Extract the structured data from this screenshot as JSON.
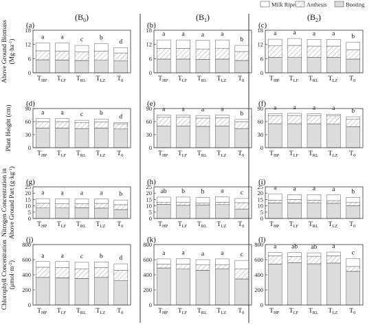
{
  "legend": [
    {
      "label": "Milk Ripe",
      "pattern": "white"
    },
    {
      "label": "Anthesis",
      "pattern": "hatch"
    },
    {
      "label": "Booting",
      "pattern": "gray"
    }
  ],
  "colors": {
    "booting_fill": "#dcdcdc",
    "milk_fill": "#ffffff",
    "hatch_line": "#8a8a8a",
    "edge": "#555555"
  },
  "column_headers": [
    {
      "base": "(B",
      "sub": "0",
      "close": ")"
    },
    {
      "base": "(B",
      "sub": "1",
      "close": ")"
    },
    {
      "base": "(B",
      "sub": "2",
      "close": ")"
    }
  ],
  "categories": [
    {
      "base": "T",
      "sub": "HP"
    },
    {
      "base": "T",
      "sub": "LF"
    },
    {
      "base": "T",
      "sub": "RL"
    },
    {
      "base": "T",
      "sub": "LZ"
    },
    {
      "base": "T",
      "sub": "0"
    }
  ],
  "rows": [
    {
      "ylabel_lines": [
        [
          {
            "t": "Above Ground Biomass"
          }
        ],
        [
          {
            "t": "(Mg·ha"
          },
          {
            "t": "-1",
            "sup": true
          },
          {
            "t": ")"
          }
        ]
      ]
    },
    {
      "ylabel_lines": [
        [
          {
            "t": "Plant Height (cm)"
          }
        ]
      ]
    },
    {
      "ylabel_lines": [
        [
          {
            "t": "Nitrogen Concentration in"
          }
        ],
        [
          {
            "t": "Above Ground Part  (g·kg"
          },
          {
            "t": "-1",
            "sup": true
          },
          {
            "t": ")"
          }
        ]
      ]
    },
    {
      "ylabel_lines": [
        [
          {
            "t": "Chlorophyll Concentration"
          }
        ],
        [
          {
            "t": "(μmol·m"
          },
          {
            "t": "-2",
            "sup": true
          },
          {
            "t": ")"
          }
        ]
      ]
    }
  ],
  "chart_data": [
    {
      "type": "bar",
      "stacked": true,
      "panel": "(a)",
      "row": 0,
      "col": 0,
      "ylim": [
        0,
        18
      ],
      "yticks": [
        0,
        6,
        12,
        18
      ],
      "booting": [
        5.5,
        5.4,
        5.2,
        5.3,
        5.0
      ],
      "anthesis": [
        9.3,
        9.2,
        8.8,
        9.2,
        8.4
      ],
      "milk_ripe": [
        12.7,
        12.6,
        11.6,
        12.3,
        10.6
      ],
      "letters": [
        "a",
        "a",
        "c",
        "b",
        "d"
      ]
    },
    {
      "type": "bar",
      "stacked": true,
      "panel": "(b)",
      "row": 0,
      "col": 1,
      "ylim": [
        0,
        18
      ],
      "yticks": [
        0,
        6,
        12,
        18
      ],
      "booting": [
        5.8,
        5.8,
        5.7,
        5.8,
        5.2
      ],
      "anthesis": [
        10.3,
        10.3,
        10.1,
        10.4,
        9.0
      ],
      "milk_ripe": [
        13.9,
        13.9,
        13.7,
        13.9,
        11.6
      ],
      "letters": [
        "a",
        "a",
        "a",
        "a",
        "b"
      ]
    },
    {
      "type": "bar",
      "stacked": true,
      "panel": "(c)",
      "row": 0,
      "col": 2,
      "ylim": [
        0,
        18
      ],
      "yticks": [
        0,
        6,
        12,
        18
      ],
      "booting": [
        6.5,
        6.6,
        6.5,
        6.5,
        5.8
      ],
      "anthesis": [
        11.4,
        11.6,
        11.3,
        11.3,
        9.7
      ],
      "milk_ripe": [
        14.2,
        14.5,
        14.1,
        14.1,
        12.9
      ],
      "letters": [
        "a",
        "a",
        "a",
        "a",
        "b"
      ]
    },
    {
      "type": "bar",
      "stacked": true,
      "panel": "(d)",
      "row": 1,
      "col": 0,
      "ylim": [
        0,
        90
      ],
      "yticks": [
        0,
        30,
        60,
        90
      ],
      "booting": [
        45,
        45,
        44,
        45,
        43
      ],
      "anthesis": [
        60,
        60,
        58,
        59,
        55
      ],
      "milk_ripe": [
        67,
        67,
        63,
        66,
        58
      ],
      "letters": [
        "a",
        "a",
        "c",
        "b",
        "d"
      ]
    },
    {
      "type": "bar",
      "stacked": true,
      "panel": "(e)",
      "row": 1,
      "col": 1,
      "ylim": [
        0,
        90
      ],
      "yticks": [
        0,
        30,
        60,
        90
      ],
      "booting": [
        50,
        50,
        49,
        50,
        44
      ],
      "anthesis": [
        70,
        70,
        68,
        69,
        60
      ],
      "milk_ripe": [
        75,
        75,
        74,
        75,
        65
      ],
      "letters": [
        "a",
        "a",
        "a",
        "a",
        "b"
      ]
    },
    {
      "type": "bar",
      "stacked": true,
      "panel": "(f)",
      "row": 1,
      "col": 2,
      "ylim": [
        0,
        90
      ],
      "yticks": [
        0,
        30,
        60,
        90
      ],
      "booting": [
        55,
        55,
        55,
        54,
        48
      ],
      "anthesis": [
        74,
        74,
        74,
        73,
        66
      ],
      "milk_ripe": [
        78,
        79,
        78,
        77,
        71
      ],
      "letters": [
        "a",
        "a",
        "a",
        "a",
        "b"
      ]
    },
    {
      "type": "bar",
      "stacked": true,
      "panel": "(g)",
      "row": 2,
      "col": 0,
      "ylim": [
        0,
        25
      ],
      "yticks": [
        0,
        5,
        10,
        15,
        20,
        25
      ],
      "booting": [
        8.3,
        8.3,
        8.4,
        8.2,
        7.0
      ],
      "anthesis": [
        12.0,
        11.6,
        11.8,
        11.9,
        10.9
      ],
      "milk_ripe": [
        15.7,
        15.6,
        15.4,
        15.5,
        14.6
      ],
      "letters": [
        "a",
        "a",
        "a",
        "a",
        "b"
      ]
    },
    {
      "type": "bar",
      "stacked": true,
      "panel": "(h)",
      "row": 2,
      "col": 1,
      "ylim": [
        0,
        25
      ],
      "yticks": [
        0,
        5,
        10,
        15,
        20,
        25
      ],
      "booting": [
        11.2,
        10.4,
        10.6,
        11.0,
        7.5
      ],
      "anthesis": [
        12.9,
        12.9,
        12.2,
        12.8,
        12.5
      ],
      "milk_ripe": [
        16.9,
        16.9,
        16.5,
        17.1,
        15.8
      ],
      "letters": [
        "ab",
        "b",
        "b",
        "a",
        "c"
      ]
    },
    {
      "type": "bar",
      "stacked": true,
      "panel": "(i)",
      "row": 2,
      "col": 2,
      "ylim": [
        0,
        25
      ],
      "yticks": [
        0,
        5,
        10,
        15,
        20,
        25
      ],
      "booting": [
        12.2,
        12.2,
        12.4,
        12.0,
        10.1
      ],
      "anthesis": [
        14.5,
        15.0,
        14.5,
        14.1,
        12.6
      ],
      "milk_ripe": [
        19.5,
        18.8,
        18.9,
        18.6,
        16.7
      ],
      "letters": [
        "a",
        "a",
        "a",
        "a",
        "b"
      ]
    },
    {
      "type": "bar",
      "stacked": true,
      "panel": "(j)",
      "row": 3,
      "col": 0,
      "ylim": [
        0,
        800
      ],
      "yticks": [
        0,
        200,
        400,
        600,
        800
      ],
      "booting": [
        365,
        360,
        350,
        365,
        325
      ],
      "anthesis": [
        500,
        495,
        480,
        495,
        460
      ],
      "milk_ripe": [
        575,
        575,
        565,
        570,
        545
      ],
      "letters": [
        "a",
        "a",
        "c",
        "b",
        "d"
      ]
    },
    {
      "type": "bar",
      "stacked": true,
      "panel": "(k)",
      "row": 3,
      "col": 1,
      "ylim": [
        0,
        800
      ],
      "yticks": [
        0,
        200,
        400,
        600,
        800
      ],
      "booting": [
        490,
        475,
        460,
        480,
        345
      ],
      "anthesis": [
        540,
        540,
        530,
        535,
        480
      ],
      "milk_ripe": [
        610,
        615,
        600,
        610,
        590
      ],
      "letters": [
        "a",
        "a",
        "a",
        "a",
        "c"
      ]
    },
    {
      "type": "bar",
      "stacked": true,
      "panel": "(l)",
      "row": 3,
      "col": 2,
      "ylim": [
        0,
        800
      ],
      "yticks": [
        0,
        200,
        400,
        600,
        800
      ],
      "booting": [
        540,
        560,
        545,
        555,
        445
      ],
      "anthesis": [
        650,
        640,
        645,
        650,
        510
      ],
      "milk_ripe": [
        695,
        695,
        690,
        700,
        615
      ],
      "letters": [
        "a",
        "ab",
        "ab",
        "a",
        "c"
      ]
    }
  ]
}
